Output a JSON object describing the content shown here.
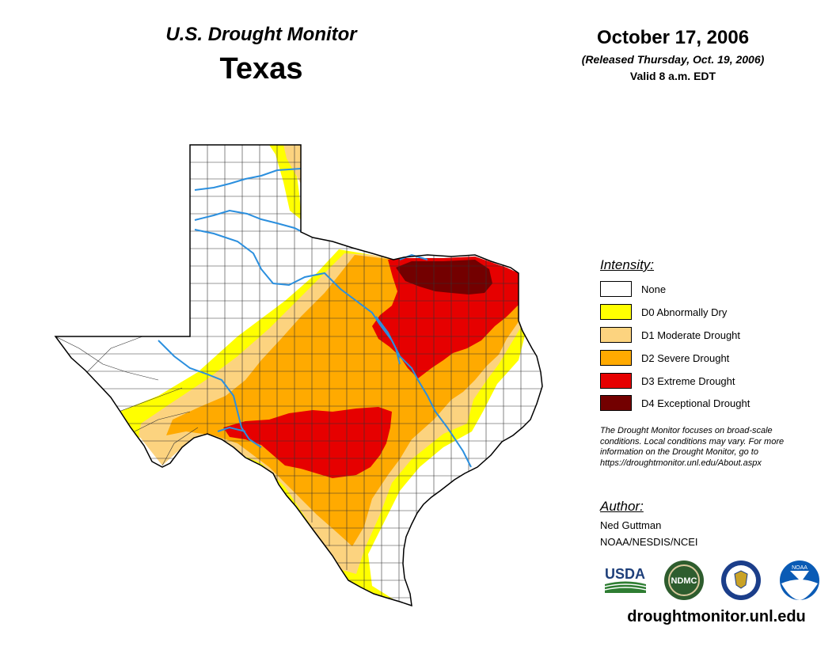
{
  "header": {
    "product": "U.S. Drought Monitor",
    "state": "Texas",
    "date": "October 17, 2006",
    "released": "(Released Thursday, Oct. 19, 2006)",
    "valid": "Valid 8 a.m. EDT"
  },
  "legend": {
    "title": "Intensity:",
    "items": [
      {
        "label": "None",
        "color": "#ffffff"
      },
      {
        "label": "D0 Abnormally Dry",
        "color": "#ffff00"
      },
      {
        "label": "D1 Moderate Drought",
        "color": "#fcd37f"
      },
      {
        "label": "D2 Severe Drought",
        "color": "#ffaa00"
      },
      {
        "label": "D3 Extreme Drought",
        "color": "#e60000"
      },
      {
        "label": "D4 Exceptional Drought",
        "color": "#730000"
      }
    ]
  },
  "note": {
    "line1": "The Drought Monitor focuses on broad-scale",
    "line2": "conditions. Local conditions may vary. For more",
    "line3": "information on the Drought Monitor, go to",
    "line4": "https://droughtmonitor.unl.edu/About.aspx"
  },
  "author": {
    "title": "Author:",
    "name": "Ned Guttman",
    "org": "NOAA/NESDIS/NCEI"
  },
  "logos": {
    "usda": "USDA",
    "ndmc": "NDMC",
    "noaa": "NOAA"
  },
  "website": "droughtmonitor.unl.edu",
  "colors": {
    "river": "#2b8fde",
    "county_line": "#333333",
    "ocean": "#ffffff"
  }
}
